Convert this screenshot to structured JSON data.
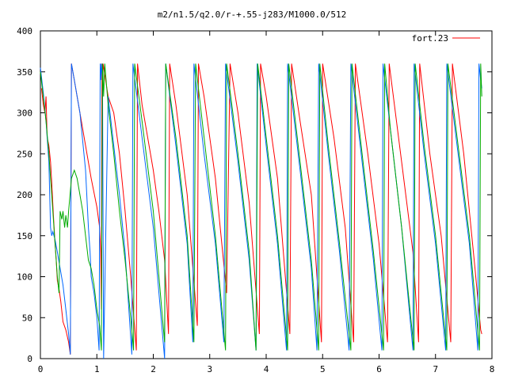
{
  "chart_data": {
    "type": "line",
    "title": "m2/n1.5/q2.0/r-+.55-j283/M1000.0/512",
    "xlabel": "",
    "ylabel": "",
    "xlim": [
      0,
      8
    ],
    "ylim": [
      0,
      400
    ],
    "x_ticks": [
      "0",
      "1",
      "2",
      "3",
      "4",
      "5",
      "6",
      "7",
      "8"
    ],
    "y_ticks": [
      "0",
      "50",
      "100",
      "150",
      "200",
      "250",
      "300",
      "350",
      "400"
    ],
    "grid": false,
    "legend_position": "top-right",
    "series": [
      {
        "name": "fort.23",
        "color": "#ff0000",
        "points": [
          [
            0.02,
            330
          ],
          [
            0.05,
            310
          ],
          [
            0.08,
            300
          ],
          [
            0.1,
            320
          ],
          [
            0.12,
            270
          ],
          [
            0.15,
            260
          ],
          [
            0.18,
            240
          ],
          [
            0.2,
            215
          ],
          [
            0.23,
            175
          ],
          [
            0.26,
            140
          ],
          [
            0.28,
            120
          ],
          [
            0.3,
            95
          ],
          [
            0.33,
            85
          ],
          [
            0.36,
            70
          ],
          [
            0.4,
            45
          ],
          [
            0.45,
            35
          ],
          [
            0.5,
            20
          ],
          [
            0.53,
            5
          ],
          [
            0.55,
            360
          ],
          [
            0.6,
            340
          ],
          [
            0.7,
            300
          ],
          [
            0.8,
            260
          ],
          [
            0.9,
            220
          ],
          [
            1.0,
            185
          ],
          [
            1.05,
            160
          ],
          [
            1.07,
            130
          ],
          [
            1.08,
            60
          ],
          [
            1.09,
            360
          ],
          [
            1.1,
            320
          ],
          [
            1.11,
            360
          ],
          [
            1.2,
            320
          ],
          [
            1.3,
            300
          ],
          [
            1.4,
            250
          ],
          [
            1.5,
            180
          ],
          [
            1.6,
            100
          ],
          [
            1.7,
            10
          ],
          [
            1.72,
            360
          ],
          [
            1.8,
            310
          ],
          [
            2.0,
            230
          ],
          [
            2.1,
            180
          ],
          [
            2.2,
            120
          ],
          [
            2.27,
            30
          ],
          [
            2.29,
            360
          ],
          [
            2.4,
            310
          ],
          [
            2.6,
            200
          ],
          [
            2.78,
            40
          ],
          [
            2.8,
            360
          ],
          [
            2.9,
            320
          ],
          [
            3.1,
            220
          ],
          [
            3.3,
            80
          ],
          [
            3.36,
            360
          ],
          [
            3.5,
            300
          ],
          [
            3.7,
            190
          ],
          [
            3.88,
            30
          ],
          [
            3.9,
            360
          ],
          [
            4.0,
            320
          ],
          [
            4.2,
            220
          ],
          [
            4.42,
            30
          ],
          [
            4.45,
            360
          ],
          [
            4.6,
            290
          ],
          [
            4.8,
            200
          ],
          [
            4.98,
            20
          ],
          [
            5.0,
            360
          ],
          [
            5.2,
            270
          ],
          [
            5.4,
            160
          ],
          [
            5.55,
            20
          ],
          [
            5.58,
            360
          ],
          [
            5.8,
            250
          ],
          [
            6.0,
            140
          ],
          [
            6.15,
            20
          ],
          [
            6.18,
            360
          ],
          [
            6.4,
            240
          ],
          [
            6.6,
            130
          ],
          [
            6.7,
            20
          ],
          [
            6.72,
            360
          ],
          [
            6.9,
            250
          ],
          [
            7.1,
            150
          ],
          [
            7.27,
            20
          ],
          [
            7.3,
            360
          ],
          [
            7.5,
            250
          ],
          [
            7.7,
            110
          ],
          [
            7.8,
            35
          ],
          [
            7.82,
            30
          ]
        ]
      },
      {
        "name": "",
        "color": "#0066ff",
        "points": [
          [
            0.0,
            355
          ],
          [
            0.05,
            325
          ],
          [
            0.1,
            290
          ],
          [
            0.15,
            240
          ],
          [
            0.18,
            160
          ],
          [
            0.2,
            150
          ],
          [
            0.22,
            155
          ],
          [
            0.26,
            145
          ],
          [
            0.3,
            130
          ],
          [
            0.35,
            110
          ],
          [
            0.4,
            90
          ],
          [
            0.45,
            60
          ],
          [
            0.5,
            30
          ],
          [
            0.53,
            5
          ],
          [
            0.55,
            360
          ],
          [
            0.6,
            340
          ],
          [
            0.7,
            300
          ],
          [
            0.8,
            230
          ],
          [
            0.85,
            160
          ],
          [
            0.88,
            130
          ],
          [
            0.9,
            100
          ],
          [
            0.95,
            80
          ],
          [
            1.0,
            50
          ],
          [
            1.04,
            10
          ],
          [
            1.06,
            360
          ],
          [
            1.07,
            340
          ],
          [
            1.08,
            360
          ],
          [
            1.1,
            340
          ],
          [
            1.12,
            0
          ],
          [
            1.2,
            320
          ],
          [
            1.3,
            260
          ],
          [
            1.4,
            200
          ],
          [
            1.5,
            130
          ],
          [
            1.62,
            5
          ],
          [
            1.64,
            360
          ],
          [
            1.8,
            270
          ],
          [
            2.0,
            160
          ],
          [
            2.15,
            40
          ],
          [
            2.2,
            0
          ],
          [
            2.22,
            360
          ],
          [
            2.4,
            260
          ],
          [
            2.6,
            140
          ],
          [
            2.7,
            20
          ],
          [
            2.72,
            360
          ],
          [
            2.9,
            250
          ],
          [
            3.1,
            140
          ],
          [
            3.25,
            20
          ],
          [
            3.28,
            360
          ],
          [
            3.5,
            240
          ],
          [
            3.7,
            120
          ],
          [
            3.82,
            10
          ],
          [
            3.84,
            360
          ],
          [
            4.0,
            260
          ],
          [
            4.2,
            140
          ],
          [
            4.36,
            10
          ],
          [
            4.38,
            360
          ],
          [
            4.6,
            230
          ],
          [
            4.8,
            110
          ],
          [
            4.9,
            10
          ],
          [
            4.93,
            360
          ],
          [
            5.1,
            250
          ],
          [
            5.3,
            130
          ],
          [
            5.47,
            10
          ],
          [
            5.5,
            360
          ],
          [
            5.7,
            240
          ],
          [
            5.9,
            120
          ],
          [
            6.05,
            10
          ],
          [
            6.07,
            360
          ],
          [
            6.2,
            280
          ],
          [
            6.4,
            160
          ],
          [
            6.6,
            10
          ],
          [
            6.62,
            360
          ],
          [
            6.8,
            250
          ],
          [
            7.0,
            140
          ],
          [
            7.18,
            10
          ],
          [
            7.2,
            360
          ],
          [
            7.4,
            250
          ],
          [
            7.6,
            140
          ],
          [
            7.75,
            10
          ],
          [
            7.77,
            360
          ],
          [
            7.8,
            340
          ],
          [
            7.82,
            330
          ]
        ]
      },
      {
        "name": "",
        "color": "#00aa00",
        "points": [
          [
            0.0,
            350
          ],
          [
            0.05,
            320
          ],
          [
            0.1,
            290
          ],
          [
            0.15,
            250
          ],
          [
            0.18,
            220
          ],
          [
            0.2,
            200
          ],
          [
            0.25,
            150
          ],
          [
            0.3,
            100
          ],
          [
            0.33,
            80
          ],
          [
            0.35,
            180
          ],
          [
            0.38,
            170
          ],
          [
            0.4,
            180
          ],
          [
            0.43,
            160
          ],
          [
            0.45,
            175
          ],
          [
            0.48,
            160
          ],
          [
            0.5,
            180
          ],
          [
            0.55,
            220
          ],
          [
            0.6,
            230
          ],
          [
            0.65,
            220
          ],
          [
            0.7,
            200
          ],
          [
            0.75,
            180
          ],
          [
            0.8,
            150
          ],
          [
            0.85,
            120
          ],
          [
            0.9,
            110
          ],
          [
            0.95,
            90
          ],
          [
            1.0,
            60
          ],
          [
            1.05,
            40
          ],
          [
            1.08,
            10
          ],
          [
            1.1,
            360
          ],
          [
            1.12,
            320
          ],
          [
            1.14,
            360
          ],
          [
            1.2,
            310
          ],
          [
            1.3,
            250
          ],
          [
            1.4,
            180
          ],
          [
            1.5,
            120
          ],
          [
            1.6,
            50
          ],
          [
            1.65,
            10
          ],
          [
            1.67,
            360
          ],
          [
            1.8,
            290
          ],
          [
            2.0,
            180
          ],
          [
            2.15,
            60
          ],
          [
            2.2,
            20
          ],
          [
            2.22,
            360
          ],
          [
            2.4,
            270
          ],
          [
            2.6,
            150
          ],
          [
            2.72,
            20
          ],
          [
            2.75,
            360
          ],
          [
            2.9,
            270
          ],
          [
            3.1,
            150
          ],
          [
            3.28,
            10
          ],
          [
            3.3,
            360
          ],
          [
            3.5,
            250
          ],
          [
            3.7,
            130
          ],
          [
            3.82,
            10
          ],
          [
            3.85,
            360
          ],
          [
            4.0,
            270
          ],
          [
            4.2,
            150
          ],
          [
            4.38,
            10
          ],
          [
            4.4,
            360
          ],
          [
            4.6,
            240
          ],
          [
            4.8,
            120
          ],
          [
            4.93,
            10
          ],
          [
            4.95,
            360
          ],
          [
            5.1,
            260
          ],
          [
            5.3,
            140
          ],
          [
            5.5,
            10
          ],
          [
            5.52,
            360
          ],
          [
            5.7,
            250
          ],
          [
            5.9,
            130
          ],
          [
            6.08,
            10
          ],
          [
            6.1,
            360
          ],
          [
            6.2,
            280
          ],
          [
            6.4,
            160
          ],
          [
            6.62,
            10
          ],
          [
            6.64,
            360
          ],
          [
            6.8,
            260
          ],
          [
            7.0,
            150
          ],
          [
            7.2,
            10
          ],
          [
            7.22,
            360
          ],
          [
            7.4,
            260
          ],
          [
            7.6,
            150
          ],
          [
            7.78,
            10
          ],
          [
            7.8,
            360
          ],
          [
            7.82,
            320
          ]
        ]
      }
    ]
  }
}
